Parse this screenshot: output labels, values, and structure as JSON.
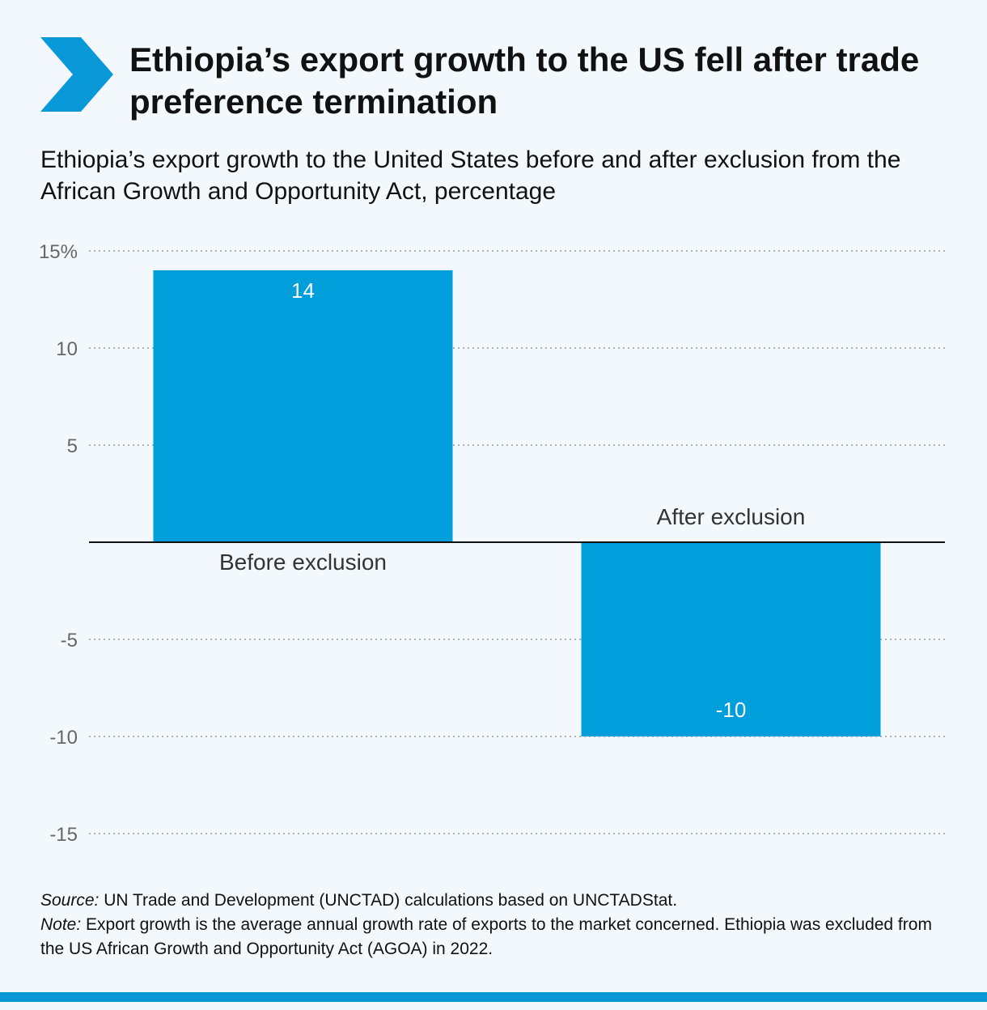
{
  "header": {
    "title": "Ethiopia’s export growth to the US fell after trade preference termination",
    "subtitle": "Ethiopia’s export growth to the United States before and after exclusion from the African Growth and Opportunity Act, percentage",
    "icon": "chevron-right-icon"
  },
  "chart_data": {
    "type": "bar",
    "categories": [
      "Before exclusion",
      "After exclusion"
    ],
    "values": [
      14,
      -10
    ],
    "value_labels": [
      "14",
      "-10"
    ],
    "title": "",
    "xlabel": "",
    "ylabel": "",
    "ylim": [
      -15,
      15
    ],
    "yticks": [
      15,
      10,
      5,
      -5,
      -10,
      -15
    ],
    "ytick_labels": [
      "15%",
      "10",
      "5",
      "-5",
      "-10",
      "-15"
    ],
    "grid": true,
    "legend": "none"
  },
  "footer": {
    "source_label": "Source:",
    "source_text": " UN Trade and Development (UNCTAD) calculations based on UNCTADStat.",
    "note_label": "Note:",
    "note_text": " Export growth is the average annual growth rate of exports to the market concerned. Ethiopia was excluded from the US African Growth and Opportunity Act (AGOA) in 2022."
  },
  "colors": {
    "bar": "#009edb",
    "accent": "#0a99d8",
    "background": "#f3f8fc"
  }
}
